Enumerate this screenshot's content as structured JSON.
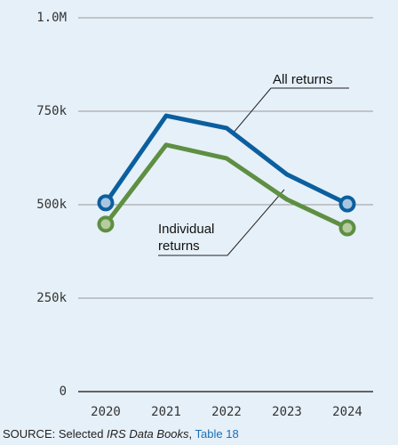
{
  "chart_data": {
    "type": "line",
    "categories": [
      "2020",
      "2021",
      "2022",
      "2023",
      "2024"
    ],
    "series": [
      {
        "name": "All returns",
        "color": "#0b5f9e",
        "marker_fill": "#a9c6e0",
        "values": [
          505000,
          738000,
          705000,
          581000,
          502000
        ]
      },
      {
        "name": "Individual returns",
        "color": "#5e8f42",
        "marker_fill": "#b5cc9f",
        "values": [
          448000,
          660000,
          624000,
          514000,
          438000
        ]
      }
    ],
    "ylim": [
      0,
      1000000
    ],
    "yticks": [
      0,
      {
        "value": 250000,
        "label": "250k"
      },
      {
        "value": 500000,
        "label": "500k"
      },
      {
        "value": 750000,
        "label": "750k"
      },
      {
        "value": 1000000,
        "label": "1.0M"
      }
    ],
    "grid": true,
    "source": {
      "prefix": "SOURCE: Selected ",
      "italic": "IRS Data Books",
      "separator": ", ",
      "link": "Table 18"
    }
  }
}
